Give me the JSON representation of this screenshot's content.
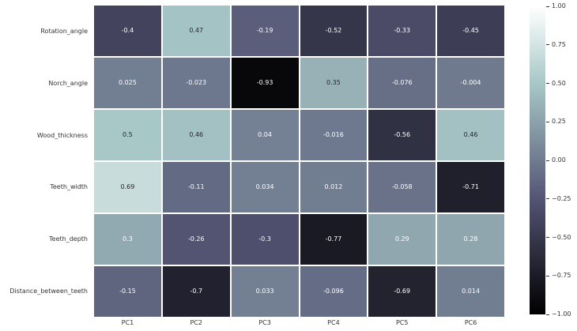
{
  "chart_data": {
    "type": "heatmap",
    "rows": [
      "Rotation_angle",
      "Norch_angle",
      "Wood_thickness",
      "Teeth_width",
      "Teeth_depth",
      "Distance_between_teeth"
    ],
    "columns": [
      "PC1",
      "PC2",
      "PC3",
      "PC4",
      "PC5",
      "PC6"
    ],
    "values": [
      [
        -0.4,
        0.47,
        -0.19,
        -0.52,
        -0.33,
        -0.45
      ],
      [
        0.025,
        -0.023,
        -0.93,
        0.35,
        -0.076,
        -0.004
      ],
      [
        0.5,
        0.46,
        0.04,
        -0.016,
        -0.56,
        0.46
      ],
      [
        0.69,
        -0.11,
        0.034,
        0.012,
        -0.058,
        -0.71
      ],
      [
        0.3,
        -0.26,
        -0.3,
        -0.77,
        0.29,
        0.28
      ],
      [
        -0.15,
        -0.7,
        0.033,
        -0.096,
        -0.69,
        0.014
      ]
    ],
    "cell_labels": [
      [
        "-0.4",
        "0.47",
        "-0.19",
        "-0.52",
        "-0.33",
        "-0.45"
      ],
      [
        "0.025",
        "-0.023",
        "-0.93",
        "0.35",
        "-0.076",
        "-0.004"
      ],
      [
        "0.5",
        "0.46",
        "0.04",
        "-0.016",
        "-0.56",
        "0.46"
      ],
      [
        "0.69",
        "-0.11",
        "0.034",
        "0.012",
        "-0.058",
        "-0.71"
      ],
      [
        "0.3",
        "-0.26",
        "-0.3",
        "-0.77",
        "0.29",
        "0.28"
      ],
      [
        "-0.15",
        "-0.7",
        "0.033",
        "-0.096",
        "-0.69",
        "0.014"
      ]
    ],
    "colormap": "bone",
    "vmin": -1,
    "vmax": 1,
    "grid_line_color": "#ffffff",
    "annotation_text_light": "#ffffff",
    "annotation_text_dark": "#262626",
    "axis_label_color": "#333333",
    "legend_position": "right",
    "colorbar": {
      "tick_labels": [
        "1.00",
        "0.75",
        "0.50",
        "0.25",
        "0.00",
        "−0.25",
        "−0.50",
        "−0.75",
        "−1.00"
      ],
      "tick_values": [
        1,
        0.75,
        0.5,
        0.25,
        0,
        -0.25,
        -0.5,
        -0.75,
        -1
      ]
    }
  }
}
